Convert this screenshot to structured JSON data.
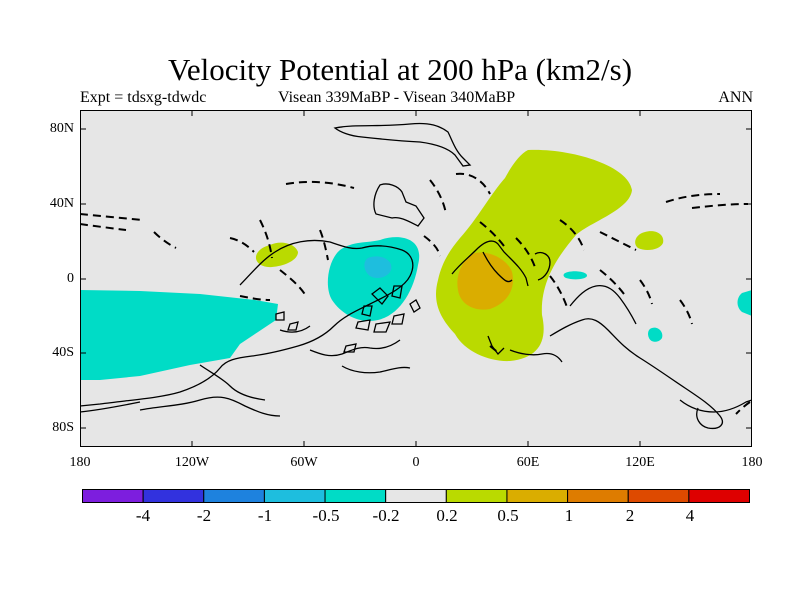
{
  "title": "Velocity Potential at 200 hPa (km2/s)",
  "subtitle_left": "Expt = tdsxg-tdwdc",
  "subtitle_center": "Visean 339MaBP - Visean   340MaBP",
  "subtitle_right": "ANN",
  "map": {
    "background_color": "#e6e6e6",
    "longitude_range": [
      -180,
      180
    ],
    "latitude_range": [
      -90,
      90
    ],
    "y_ticks": [
      "80N",
      "40N",
      "0",
      "40S",
      "80S"
    ],
    "x_ticks": [
      "180",
      "120W",
      "60W",
      "0",
      "60E",
      "120E",
      "180"
    ],
    "shaded_regions": [
      {
        "name": "pacific-negative-anomaly",
        "level": "-0.5 to -0.2",
        "color": "#00dcc6"
      },
      {
        "name": "central-negative-anomaly",
        "level": "-0.5 to -0.2",
        "color": "#00dcc6"
      },
      {
        "name": "central-negative-core",
        "level": "-1 to -0.5",
        "color": "#1ebede"
      },
      {
        "name": "eastern-positive-anomaly",
        "level": "0.2 to 0.5",
        "color": "#bada00"
      },
      {
        "name": "eastern-positive-core",
        "level": "0.5 to 1",
        "color": "#daad00"
      },
      {
        "name": "west-positive-blob",
        "level": "0.2 to 0.5",
        "color": "#bada00"
      }
    ]
  },
  "colorbar": {
    "colors": [
      "#7d1ede",
      "#3232de",
      "#1e82de",
      "#1ebede",
      "#00dcc6",
      "#e6e6e6",
      "#bada00",
      "#daad00",
      "#de7c00",
      "#de4a00",
      "#de0000"
    ],
    "labels": [
      "-4",
      "-2",
      "-1",
      "-0.5",
      "-0.2",
      "0.2",
      "0.5",
      "1",
      "2",
      "4"
    ]
  }
}
